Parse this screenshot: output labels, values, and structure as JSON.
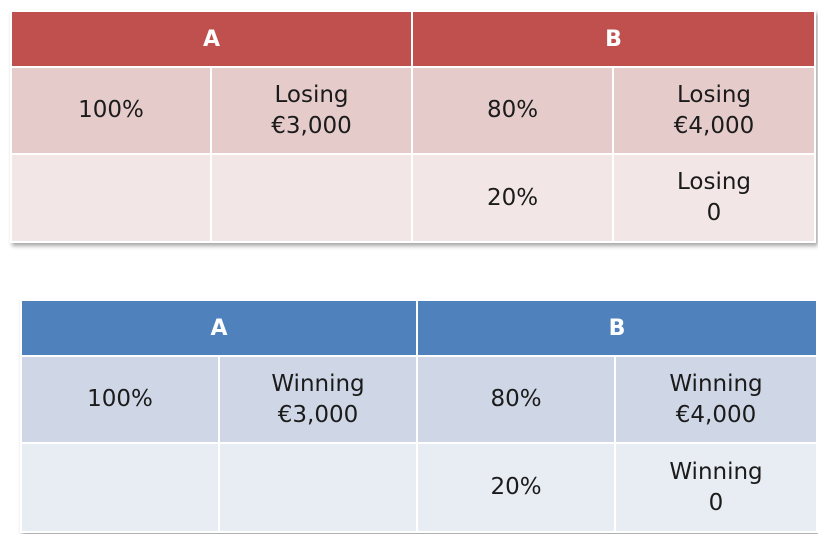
{
  "tables": [
    {
      "header": [
        "A",
        "B"
      ],
      "rows": [
        {
          "a_prob": "100%",
          "a_out_1": "Losing",
          "a_out_2": "€3,000",
          "b_prob": "80%",
          "b_out_1": "Losing",
          "b_out_2": "€4,000"
        },
        {
          "a_prob": "",
          "a_out_1": "",
          "a_out_2": "",
          "b_prob": "20%",
          "b_out_1": "Losing",
          "b_out_2": "0"
        }
      ],
      "colors": {
        "header": "#c0504d",
        "row1": "#e6cbcb",
        "row2": "#f2e6e6"
      }
    },
    {
      "header": [
        "A",
        "B"
      ],
      "rows": [
        {
          "a_prob": "100%",
          "a_out_1": "Winning",
          "a_out_2": "€3,000",
          "b_prob": "80%",
          "b_out_1": "Winning",
          "b_out_2": "€4,000"
        },
        {
          "a_prob": "",
          "a_out_1": "",
          "a_out_2": "",
          "b_prob": "20%",
          "b_out_1": "Winning",
          "b_out_2": "0"
        }
      ],
      "colors": {
        "header": "#4f81bd",
        "row1": "#cfd7e6",
        "row2": "#e8ecf3"
      }
    }
  ]
}
